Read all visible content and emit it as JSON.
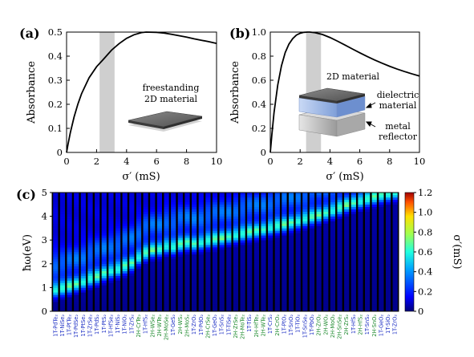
{
  "colors": {
    "t1": "#1d2fc4",
    "t2h": "#1e8a2e",
    "curve": "#000000",
    "band": "#cfcfcf"
  },
  "chart_data": [
    {
      "type": "line",
      "panel_label": "(a)",
      "xlabel": "σ′ (mS)",
      "ylabel": "Absorbance",
      "xlim": [
        0,
        10
      ],
      "ylim": [
        0,
        0.5
      ],
      "xticks": [
        "0",
        "2",
        "4",
        "6",
        "8",
        "10"
      ],
      "yticks": [
        "0",
        "0.1",
        "0.2",
        "0.3",
        "0.4",
        "0.5"
      ],
      "band": [
        2.2,
        3.2
      ],
      "x": [
        0,
        0.1,
        0.25,
        0.5,
        0.75,
        1,
        1.5,
        2,
        2.5,
        3,
        3.5,
        4,
        4.5,
        5,
        5.3,
        6,
        6.5,
        7,
        7.5,
        8,
        8.5,
        9,
        9.5,
        10
      ],
      "y": [
        0,
        0.035,
        0.082,
        0.147,
        0.2,
        0.244,
        0.31,
        0.356,
        0.39,
        0.425,
        0.452,
        0.474,
        0.489,
        0.498,
        0.5,
        0.499,
        0.496,
        0.491,
        0.485,
        0.479,
        0.472,
        0.466,
        0.46,
        0.453
      ],
      "annotations": [
        "freestanding",
        "2D material"
      ]
    },
    {
      "type": "line",
      "panel_label": "(b)",
      "xlabel": "σ′ (mS)",
      "ylabel": "Absorbance",
      "xlim": [
        0,
        10
      ],
      "ylim": [
        0,
        1.0
      ],
      "xticks": [
        "0",
        "2",
        "4",
        "6",
        "8",
        "10"
      ],
      "yticks": [
        "0",
        "0.2",
        "0.4",
        "0.6",
        "0.8",
        "1.0"
      ],
      "band": [
        2.4,
        3.4
      ],
      "x": [
        0,
        0.1,
        0.25,
        0.5,
        0.75,
        1,
        1.25,
        1.5,
        1.75,
        2,
        2.25,
        2.5,
        2.65,
        3,
        3.5,
        4,
        4.5,
        5,
        5.5,
        6,
        6.5,
        7,
        7.5,
        8,
        8.5,
        9,
        9.5,
        10
      ],
      "y": [
        0,
        0.14,
        0.33,
        0.56,
        0.72,
        0.83,
        0.9,
        0.945,
        0.975,
        0.99,
        0.998,
        1.0,
        1.0,
        0.995,
        0.98,
        0.955,
        0.925,
        0.893,
        0.86,
        0.828,
        0.797,
        0.768,
        0.741,
        0.716,
        0.693,
        0.672,
        0.653,
        0.635
      ],
      "annotations": [
        "2D material",
        "dielectric",
        "material",
        "metal",
        "reflector"
      ]
    },
    {
      "type": "heatmap",
      "panel_label": "(c)",
      "ylabel": "ħω(eV)",
      "colorbar_label": "σ′(mS)",
      "ylim": [
        0,
        5
      ],
      "yticks": [
        "0",
        "1",
        "2",
        "3",
        "4",
        "5"
      ],
      "colorbar_range": [
        0,
        1.2
      ],
      "colorbar_ticks": [
        "0",
        "0.2",
        "0.4",
        "0.6",
        "0.8",
        "1.0",
        "1.2"
      ],
      "materials": [
        {
          "label": "1T-PdTe₂",
          "family": "1T",
          "peak": 0.88
        },
        {
          "label": "1T-NiSe₂",
          "family": "1T",
          "peak": 0.94
        },
        {
          "label": "1T-PtTe₂",
          "family": "1T",
          "peak": 1.02
        },
        {
          "label": "1T-PdSe₂",
          "family": "1T",
          "peak": 1.12
        },
        {
          "label": "1T-PtSe₂",
          "family": "1T",
          "peak": 1.22
        },
        {
          "label": "1T-ZrSe₂",
          "family": "1T",
          "peak": 1.34
        },
        {
          "label": "1T-PdS₂",
          "family": "1T",
          "peak": 1.42
        },
        {
          "label": "1T-PtS₂",
          "family": "1T",
          "peak": 1.58
        },
        {
          "label": "1T-HfSe₂",
          "family": "1T",
          "peak": 1.68
        },
        {
          "label": "1T-NiS₂",
          "family": "1T",
          "peak": 1.74
        },
        {
          "label": "1T-NiO₂",
          "family": "1T",
          "peak": 1.86
        },
        {
          "label": "1T-ZrS₂",
          "family": "1T",
          "peak": 2.0
        },
        {
          "label": "2H-CrTe₂",
          "family": "2H",
          "peak": 2.25
        },
        {
          "label": "1T-HfS₂",
          "family": "1T",
          "peak": 2.42
        },
        {
          "label": "2H-WSe₂",
          "family": "2H",
          "peak": 2.55
        },
        {
          "label": "2H-WTe₂",
          "family": "2H",
          "peak": 2.6
        },
        {
          "label": "2H-MoSe₂",
          "family": "2H",
          "peak": 2.72
        },
        {
          "label": "1T-GeS₂",
          "family": "1T",
          "peak": 2.68
        },
        {
          "label": "2H-WS₂",
          "family": "2H",
          "peak": 2.78
        },
        {
          "label": "2H-MoS₂",
          "family": "2H",
          "peak": 2.86
        },
        {
          "label": "1T-ZrO₂",
          "family": "1T",
          "peak": 2.82
        },
        {
          "label": "1T-PdO₂",
          "family": "1T",
          "peak": 2.88
        },
        {
          "label": "2H-CrSe₂",
          "family": "2H",
          "peak": 2.95
        },
        {
          "label": "1T-GeO₂",
          "family": "1T",
          "peak": 3.0
        },
        {
          "label": "1T-SnS₂",
          "family": "1T",
          "peak": 3.05
        },
        {
          "label": "1T-TiSe₂",
          "family": "1T",
          "peak": 3.12
        },
        {
          "label": "2H-ZrSe₂",
          "family": "2H",
          "peak": 3.18
        },
        {
          "label": "2H-MoTe₂",
          "family": "2H",
          "peak": 3.24
        },
        {
          "label": "1T-TiS₂",
          "family": "1T",
          "peak": 3.3
        },
        {
          "label": "2H-HfTe₂",
          "family": "2H",
          "peak": 3.36
        },
        {
          "label": "2H-WTe₂",
          "family": "2H",
          "peak": 3.42
        },
        {
          "label": "1T-CrS₂",
          "family": "1T",
          "peak": 3.5
        },
        {
          "label": "2H-CrO₂",
          "family": "2H",
          "peak": 3.56
        },
        {
          "label": "1T-PtO₂",
          "family": "1T",
          "peak": 3.62
        },
        {
          "label": "1T-SnO₂",
          "family": "1T",
          "peak": 3.7
        },
        {
          "label": "1T-TiO₂",
          "family": "1T",
          "peak": 3.78
        },
        {
          "label": "1T-SnSe₂",
          "family": "1T",
          "peak": 3.86
        },
        {
          "label": "1T-PbO₂",
          "family": "1T",
          "peak": 3.94
        },
        {
          "label": "2H-ZrO₂",
          "family": "2H",
          "peak": 4.02
        },
        {
          "label": "2H-WO₂",
          "family": "2H",
          "peak": 4.12
        },
        {
          "label": "2H-MoO₂",
          "family": "2H",
          "peak": 4.22
        },
        {
          "label": "2H-SnSe₂",
          "family": "2H",
          "peak": 4.32
        },
        {
          "label": "2H-ZrS₂",
          "family": "2H",
          "peak": 4.45
        },
        {
          "label": "1T-HfS₂",
          "family": "1T",
          "peak": 4.55
        },
        {
          "label": "2H-HfS₂",
          "family": "2H",
          "peak": 4.62
        },
        {
          "label": "1T-SnS₂",
          "family": "1T",
          "peak": 4.7
        },
        {
          "label": "2H-SnO₂",
          "family": "2H",
          "peak": 4.78
        },
        {
          "label": "1T-GeO₂",
          "family": "1T",
          "peak": 4.86
        },
        {
          "label": "1T-SiO₂",
          "family": "1T",
          "peak": 4.92
        },
        {
          "label": "1T-ZrO₂",
          "family": "1T",
          "peak": 4.98
        }
      ]
    }
  ]
}
